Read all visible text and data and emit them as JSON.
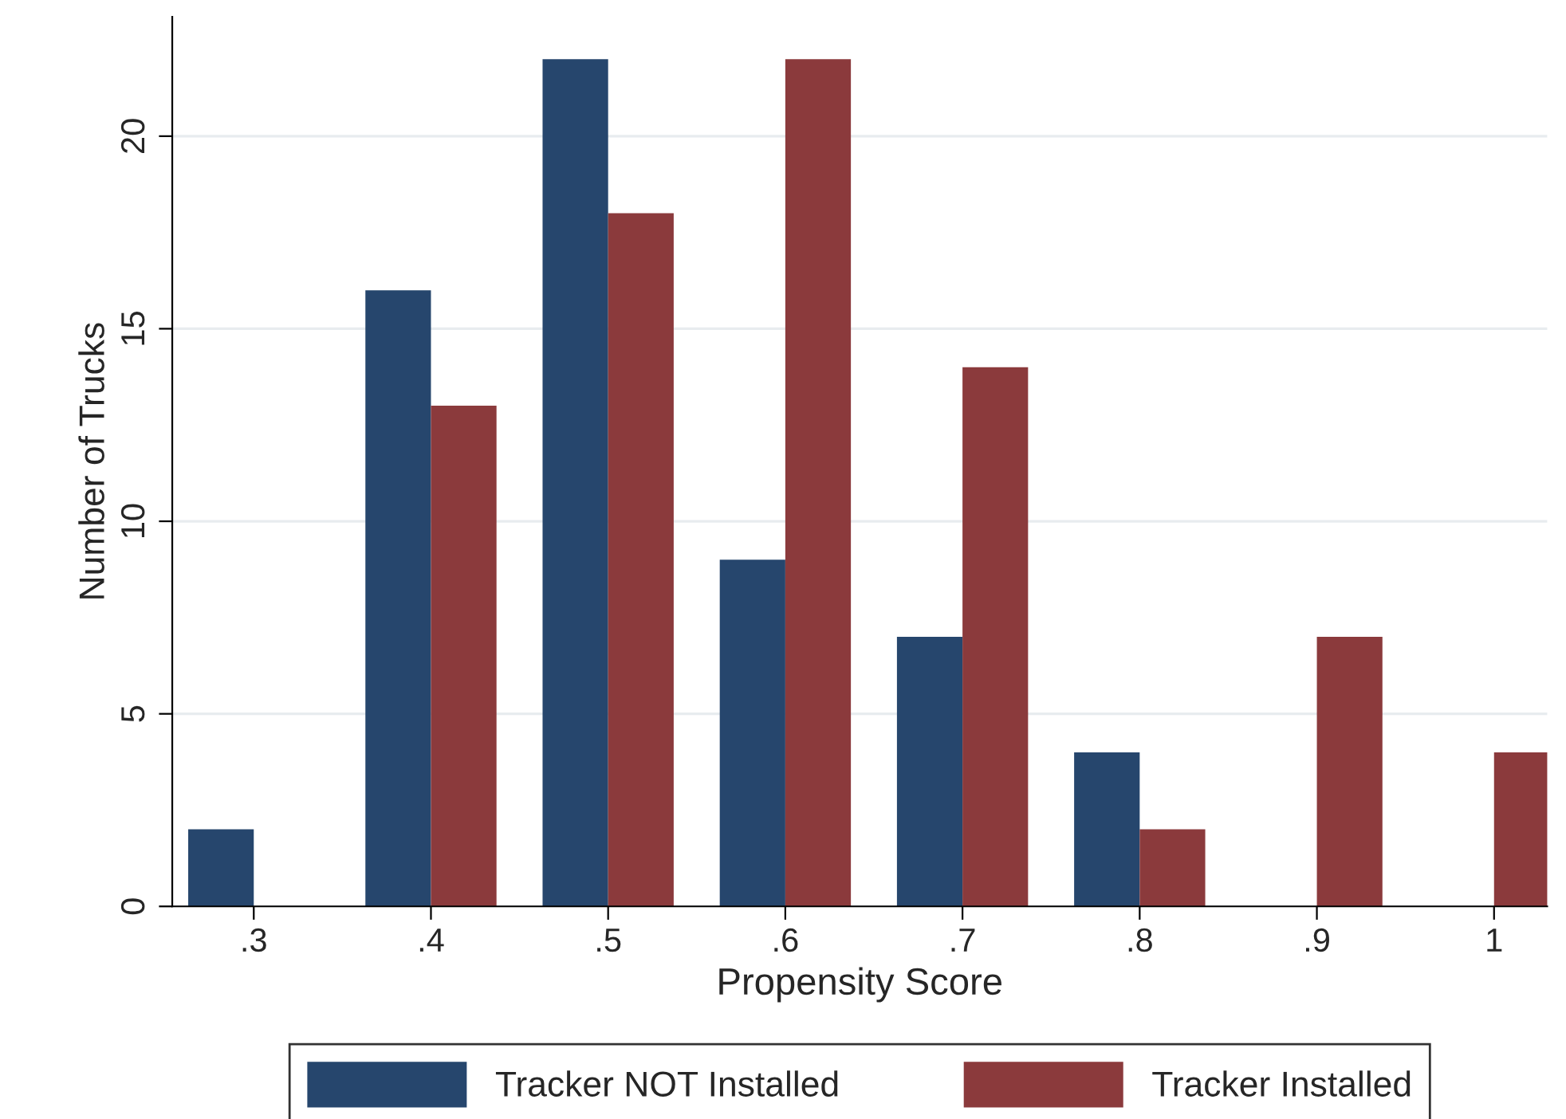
{
  "chart_data": {
    "type": "bar",
    "xlabel": "Propensity Score",
    "ylabel": "Number of Trucks",
    "categories": [
      ".3",
      ".4",
      ".5",
      ".6",
      ".7",
      ".8",
      ".9",
      "1"
    ],
    "series": [
      {
        "name": "Tracker NOT Installed",
        "color": "#26466d",
        "values": [
          2,
          16,
          22,
          9,
          7,
          4,
          0,
          0
        ]
      },
      {
        "name": "Tracker Installed",
        "color": "#8b3a3c",
        "values": [
          0,
          13,
          18,
          22,
          14,
          2,
          7,
          4
        ]
      }
    ],
    "ylim": [
      0,
      23.1
    ],
    "yticks": [
      0,
      5,
      10,
      15,
      20
    ],
    "grid": "y",
    "legend": "bottom"
  }
}
